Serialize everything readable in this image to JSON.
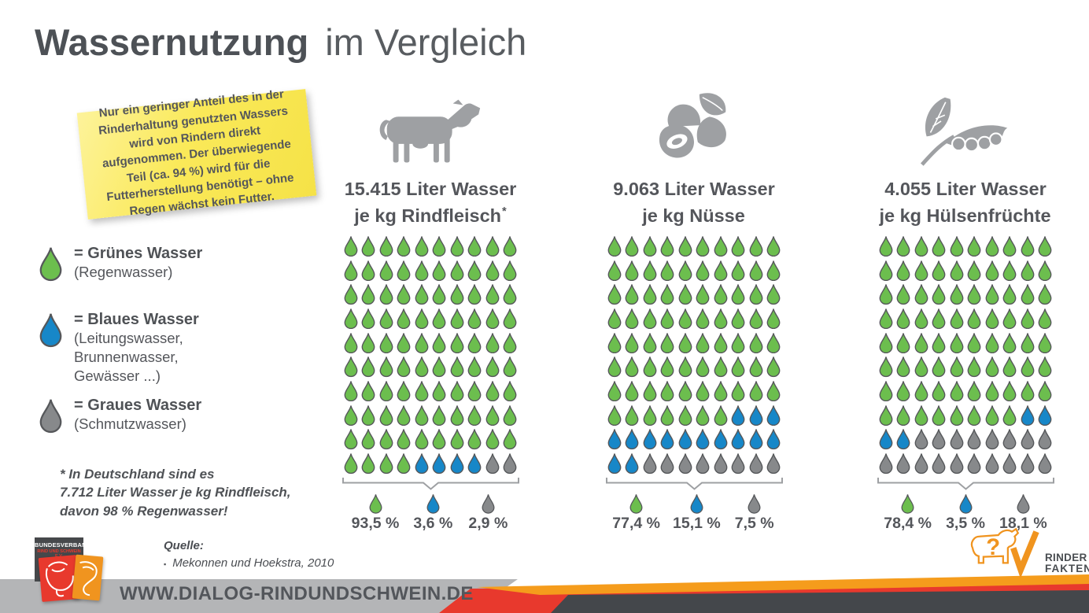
{
  "colors": {
    "green": "#6cbe4e",
    "blue": "#1787c8",
    "gray": "#87898b",
    "outline": "#55575a",
    "icon_gray": "#9ea0a3",
    "text_dark": "#54565b",
    "note_yellow": "#f9e752",
    "accent_red": "#e8392d",
    "accent_orange": "#f59c1c",
    "band_gray": "#b4b5b7",
    "band_dark": "#44474b"
  },
  "title": {
    "main": "Wassernutzung",
    "suffix": "im Vergleich"
  },
  "sticky_note": {
    "text": "Nur ein geringer Anteil des in der Rinderhaltung genutzten Wassers wird von Rindern direkt aufgenommen. Der überwiegende Teil (ca. 94 %) wird für die Futterherstellung benötigt – ohne Regen wächst kein Futter."
  },
  "legend": {
    "items": [
      {
        "icon": "green-water-drop-icon",
        "color_key": "green",
        "label": "= Grünes Wasser",
        "sublabel": "(Regenwasser)"
      },
      {
        "icon": "blue-water-drop-icon",
        "color_key": "blue",
        "label": "= Blaues Wasser",
        "sublabel": "(Leitungswasser,\nBrunnenwasser,\nGewässer ...)"
      },
      {
        "icon": "gray-water-drop-icon",
        "color_key": "gray",
        "label": "= Graues Wasser",
        "sublabel": "(Schmutzwasser)"
      }
    ]
  },
  "footnote": {
    "text": "* In Deutschland sind es\n7.712 Liter Wasser je kg Rindfleisch,\ndavon 98 % Regenwasser!"
  },
  "columns": [
    {
      "id": "rindfleisch",
      "icon": "cow-icon",
      "title_line1": "15.415 Liter Wasser",
      "title_line2": "je kg Rindfleisch",
      "mark": "*",
      "drops": {
        "green": 94,
        "blue": 4,
        "gray": 2
      },
      "percents": {
        "green": "93,5 %",
        "blue": "3,6 %",
        "gray": "2,9 %"
      }
    },
    {
      "id": "nuesse",
      "icon": "nuts-icon",
      "title_line1": "9.063 Liter Wasser",
      "title_line2": "je kg Nüsse",
      "mark": "",
      "drops": {
        "green": 77,
        "blue": 15,
        "gray": 8
      },
      "percents": {
        "green": "77,4 %",
        "blue": "15,1 %",
        "gray": "7,5 %"
      }
    },
    {
      "id": "huelsenfruechte",
      "icon": "legume-icon",
      "title_line1": "4.055 Liter Wasser",
      "title_line2": "je kg Hülsenfrüchte",
      "mark": "",
      "drops": {
        "green": 78,
        "blue": 4,
        "gray": 18
      },
      "percents": {
        "green": "78,4 %",
        "blue": "3,5 %",
        "gray": "18,1 %"
      }
    }
  ],
  "chart_data": {
    "type": "pictograph",
    "title": "Wassernutzung im Vergleich",
    "unit": "1 Tropfen = 1 % des Wasserbedarfs (10×10 Raster je Kategorie)",
    "categories": [
      "Rindfleisch",
      "Nüsse",
      "Hülsenfrüchte"
    ],
    "liters_per_kg": [
      15415,
      9063,
      4055
    ],
    "category_labels": [
      "15.415 Liter Wasser je kg Rindfleisch*",
      "9.063 Liter Wasser je kg Nüsse",
      "4.055 Liter Wasser je kg Hülsenfrüchte"
    ],
    "series": [
      {
        "name": "Grünes Wasser (Regenwasser)",
        "color": "#6cbe4e",
        "values_pct": [
          93.5,
          77.4,
          78.4
        ],
        "drop_counts": [
          94,
          77,
          78
        ]
      },
      {
        "name": "Blaues Wasser (Leitungswasser, Brunnenwasser, Gewässer ...)",
        "color": "#1787c8",
        "values_pct": [
          3.6,
          15.1,
          3.5
        ],
        "drop_counts": [
          4,
          15,
          4
        ]
      },
      {
        "name": "Graues Wasser (Schmutzwasser)",
        "color": "#87898b",
        "values_pct": [
          2.9,
          7.5,
          18.1
        ],
        "drop_counts": [
          2,
          8,
          18
        ]
      }
    ],
    "annotations": [
      "* In Deutschland sind es 7.712 Liter Wasser je kg Rindfleisch, davon 98 % Regenwasser!",
      "Nur ein geringer Anteil des in der Rinderhaltung genutzten Wassers wird von Rindern direkt aufgenommen. Der überwiegende Teil (ca. 94 %) wird für die Futterherstellung benötigt – ohne Regen wächst kein Futter.",
      "Quelle: Mekonnen und Hoekstra, 2010"
    ],
    "legend_position": "left"
  },
  "footer": {
    "source_label": "Quelle:",
    "source_bullet": "▪",
    "source_item": "Mekonnen und Hoekstra, 2010",
    "url": "WWW.DIALOG-RINDUNDSCHWEIN.DE",
    "bv_logo": {
      "line1": "BUNDESVERBAND",
      "line2": "RIND UND SCHWEIN E.V."
    },
    "rinderfakten": {
      "line1": "RINDER",
      "line2": "FAKTEN®"
    }
  }
}
